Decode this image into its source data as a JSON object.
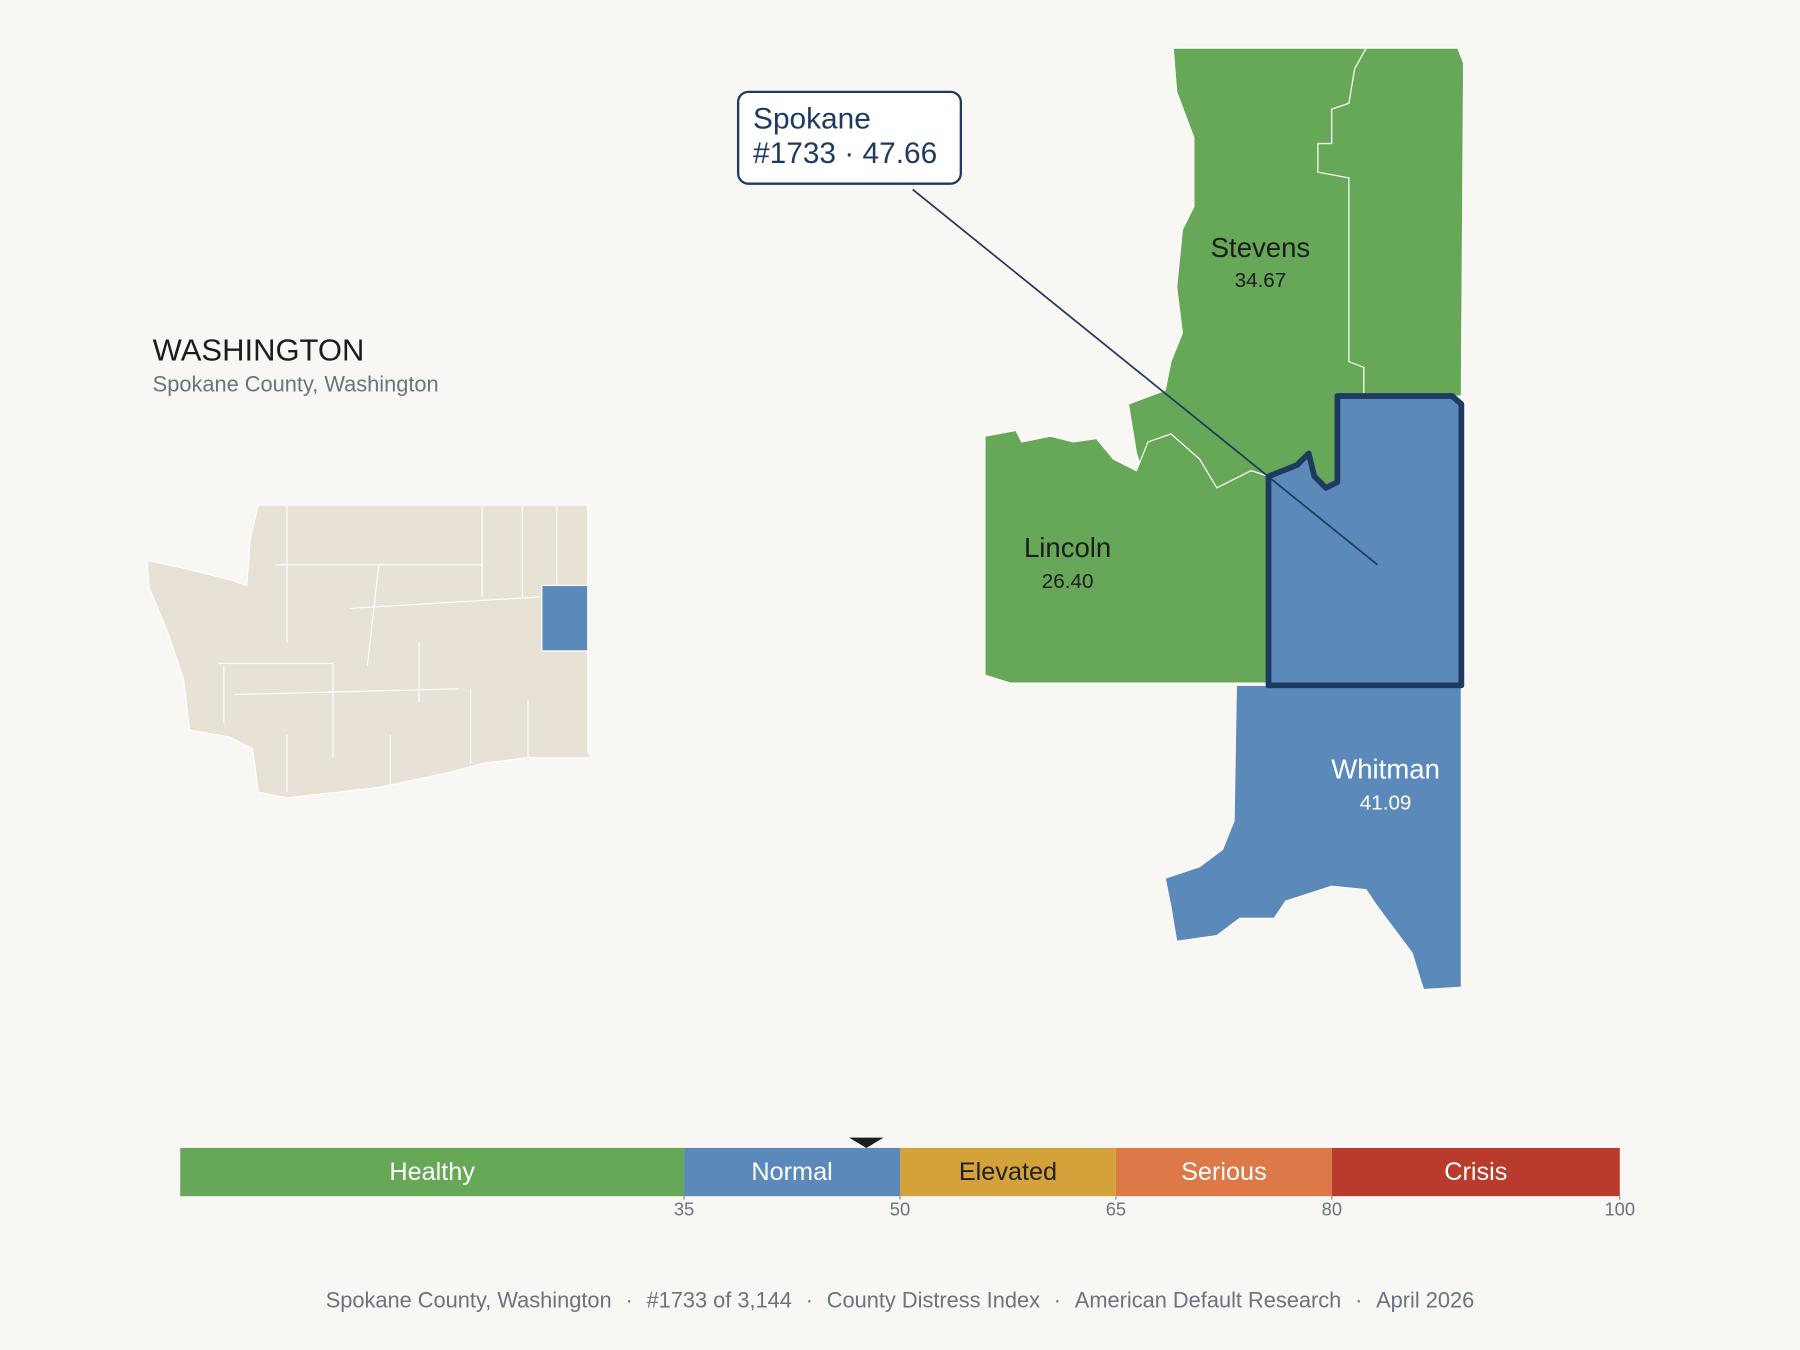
{
  "header": {
    "title": "WASHINGTON",
    "subtitle": "Spokane County, Washington"
  },
  "callout": {
    "name": "Spokane",
    "rank": "#1733",
    "separator": "·",
    "score": 47.66
  },
  "counties": [
    {
      "name": "Stevens",
      "score": "34.67",
      "color": "#66a758"
    },
    {
      "name": "Lincoln",
      "score": "26.40",
      "color": "#66a758"
    },
    {
      "name": "Whitman",
      "score": "41.09",
      "color": "#5b8aba"
    }
  ],
  "scale": {
    "lim": [
      0,
      100
    ],
    "ticks": [
      35,
      50,
      65,
      80,
      100
    ],
    "bands": [
      {
        "label": "Healthy",
        "color": "#66a758",
        "text_color": "#ffffff"
      },
      {
        "label": "Normal",
        "color": "#5b8aba",
        "text_color": "#ffffff"
      },
      {
        "label": "Elevated",
        "color": "#d4a23a",
        "text_color": "#222222"
      },
      {
        "label": "Serious",
        "color": "#dd7848",
        "text_color": "#ffffff"
      },
      {
        "label": "Crisis",
        "color": "#b93b2b",
        "text_color": "#ffffff"
      }
    ]
  },
  "footer": {
    "items": [
      "Spokane County, Washington",
      "#1733 of 3,144",
      "County Distress Index",
      "American Default Research",
      "April 2026"
    ],
    "separator": "·"
  }
}
